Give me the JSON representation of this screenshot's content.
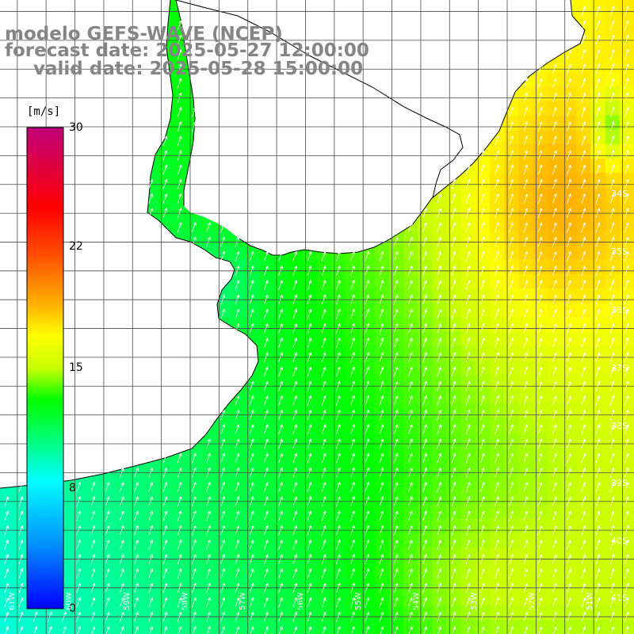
{
  "titles": {
    "line1": "modelo GEFS-WAVE (NCEP)",
    "line2": "forecast date: 2025-05-27 12:00:00",
    "line3": "valid date: 2025-05-28 15:00:00"
  },
  "colorbar": {
    "unit": "[m/s]",
    "ticks": [
      {
        "value": 30,
        "label": "30"
      },
      {
        "value": 22,
        "label": "22"
      },
      {
        "value": 15,
        "label": "15"
      },
      {
        "value": 8,
        "label": "8"
      },
      {
        "value": 0,
        "label": "0"
      }
    ],
    "stops": [
      {
        "value": 0,
        "color": "#0000ff"
      },
      {
        "value": 4,
        "color": "#0090ff"
      },
      {
        "value": 8,
        "color": "#00ffff"
      },
      {
        "value": 11,
        "color": "#00ff60"
      },
      {
        "value": 13,
        "color": "#00ff00"
      },
      {
        "value": 15,
        "color": "#c8ff00"
      },
      {
        "value": 17,
        "color": "#ffff00"
      },
      {
        "value": 19,
        "color": "#ffb000"
      },
      {
        "value": 22,
        "color": "#ff5000"
      },
      {
        "value": 25,
        "color": "#ff0000"
      },
      {
        "value": 30,
        "color": "#c0007a"
      }
    ]
  },
  "map": {
    "lon_range": [
      -61.3,
      -50.3
    ],
    "lat_range": [
      -41.3,
      -30.3
    ],
    "lat_labels": [
      "34S",
      "35S",
      "36S",
      "37S",
      "38S",
      "39S",
      "40S",
      "41S"
    ],
    "lon_labels": [
      "61W",
      "60W",
      "59W",
      "58W",
      "57W",
      "56W",
      "55W",
      "54W",
      "53W",
      "52W",
      "51W"
    ],
    "colors": {
      "land": "#ffffff",
      "coast": "#000000",
      "grid": "#4a4a4a",
      "arrow": "#ffffff"
    }
  }
}
